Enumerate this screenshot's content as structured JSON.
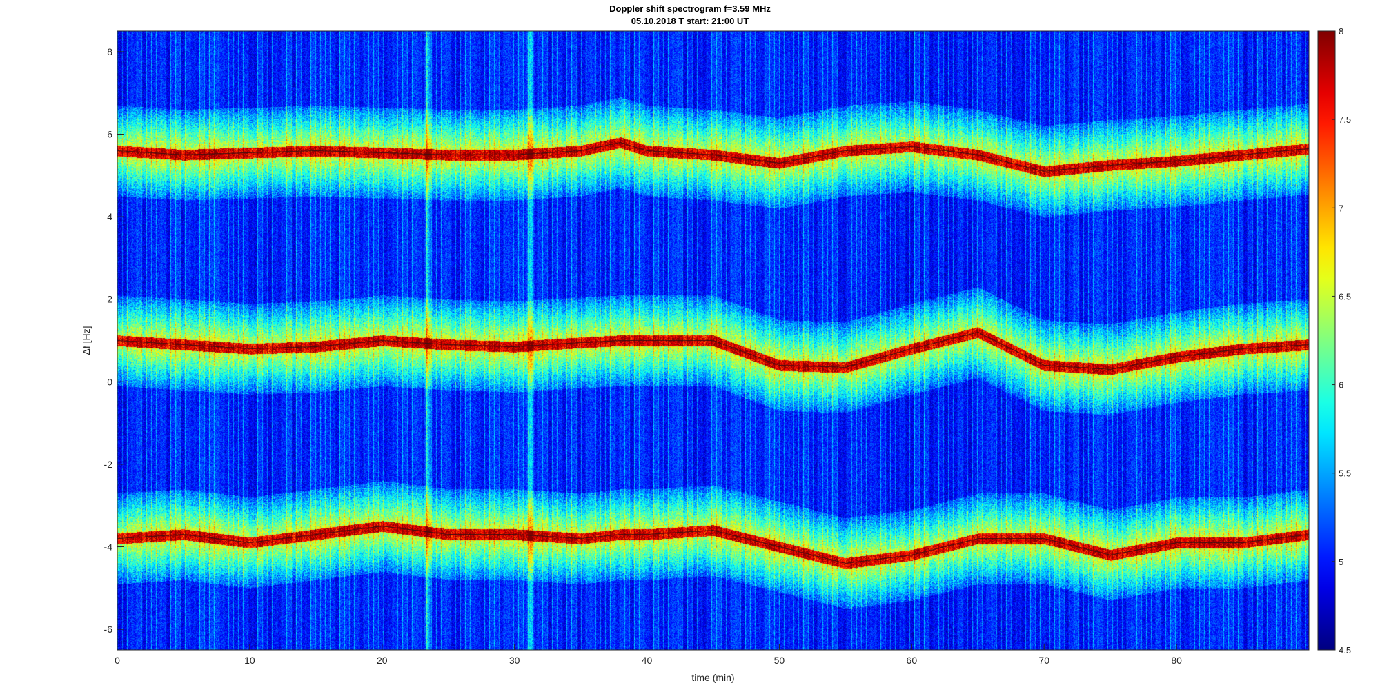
{
  "chart_data": {
    "type": "heatmap",
    "title": "Doppler shift spectrogram f=3.59 MHz",
    "subtitle": "05.10.2018   T start: 21:00 UT",
    "xlabel": "time (min)",
    "ylabel": "Δf [Hz]",
    "xlim": [
      0,
      90
    ],
    "ylim": [
      -6.5,
      8.5
    ],
    "x_ticks": [
      "0",
      "10",
      "20",
      "30",
      "40",
      "50",
      "60",
      "70",
      "80"
    ],
    "y_ticks": [
      "-6",
      "-4",
      "-2",
      "0",
      "2",
      "4",
      "6",
      "8"
    ],
    "colorbar": {
      "range": [
        4.5,
        8
      ],
      "ticks": [
        "4.5",
        "5",
        "5.5",
        "6",
        "6.5",
        "7",
        "7.5",
        "8"
      ],
      "colormap": "jet"
    },
    "series": [
      {
        "x": [
          0,
          5,
          10,
          15,
          20,
          25,
          30,
          35,
          38,
          40,
          45,
          50,
          55,
          60,
          65,
          70,
          75,
          80,
          85,
          90
        ],
        "values": [
          5.6,
          5.5,
          5.55,
          5.6,
          5.55,
          5.5,
          5.5,
          5.6,
          5.8,
          5.6,
          5.5,
          5.3,
          5.6,
          5.7,
          5.5,
          5.1,
          5.25,
          5.35,
          5.5,
          5.65
        ]
      },
      {
        "x": [
          0,
          5,
          10,
          15,
          20,
          25,
          30,
          35,
          38,
          40,
          45,
          50,
          55,
          60,
          65,
          70,
          75,
          80,
          85,
          90
        ],
        "values": [
          1.0,
          0.9,
          0.8,
          0.85,
          1.0,
          0.9,
          0.85,
          0.95,
          1.0,
          1.0,
          1.0,
          0.4,
          0.35,
          0.8,
          1.2,
          0.4,
          0.3,
          0.6,
          0.8,
          0.9
        ]
      },
      {
        "x": [
          0,
          5,
          10,
          15,
          20,
          25,
          30,
          35,
          38,
          40,
          45,
          50,
          55,
          60,
          65,
          70,
          75,
          80,
          85,
          90
        ],
        "values": [
          -3.8,
          -3.7,
          -3.9,
          -3.7,
          -3.5,
          -3.7,
          -3.7,
          -3.8,
          -3.7,
          -3.7,
          -3.6,
          -4.0,
          -4.4,
          -4.2,
          -3.8,
          -3.8,
          -4.2,
          -3.9,
          -3.9,
          -3.7
        ]
      }
    ],
    "noise_stripes_x": [
      23.4,
      31.2
    ]
  }
}
